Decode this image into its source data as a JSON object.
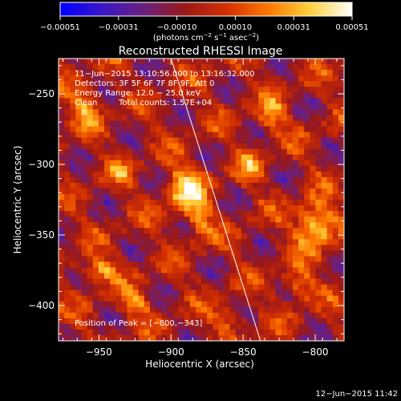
{
  "chart_data": {
    "type": "heatmap",
    "title": "Reconstructed RHESSI Image",
    "xlabel": "Heliocentric X (arcsec)",
    "ylabel": "Heliocentric Y (arcsec)",
    "xlim": [
      -978,
      -780
    ],
    "ylim": [
      -425,
      -225
    ],
    "x_ticks": [
      -950,
      -900,
      -850,
      -800
    ],
    "x_tick_labels": [
      "−950",
      "−900",
      "−850",
      "−800"
    ],
    "y_ticks": [
      -250,
      -300,
      -350,
      -400
    ],
    "y_tick_labels": [
      "−250",
      "−300",
      "−350",
      "−400"
    ],
    "colorbar": {
      "vmin": -0.00051,
      "vmax": 0.00051,
      "ticks": [
        "−0.00051",
        "−0.00031",
        "−0.00010",
        "0.00010",
        "0.00031",
        "0.00051"
      ],
      "unit_base": "(photons cm",
      "unit_sup1": "−2",
      "unit_s": " s",
      "unit_sup2": "−1",
      "unit_asec": " asec",
      "unit_sup3": "−2",
      "unit_close": ")",
      "colors": [
        "#0000ff",
        "#3a16c8",
        "#6a2080",
        "#9a1818",
        "#d43000",
        "#ff7800",
        "#ffd23c",
        "#ffffff"
      ]
    },
    "annotations": {
      "time_range": "11−Jun−2015 13:10:56.000 to 13:16:32.000",
      "detectors": "Detectors: 3F 5F 6F 7F 8F 9F, Att 0",
      "energy": "Energy Range: 12.0 − 25.0 keV",
      "algorithm": "Clean",
      "total_counts": "Total counts: 1.57E+04",
      "peak": "Position of Peak = [−800,−343]"
    },
    "limb_line": {
      "x": [
        -900,
        -838
      ],
      "y": [
        -225,
        -425
      ]
    },
    "sources": [
      {
        "x": -890,
        "y": -318,
        "peak": 0.00043,
        "sx": 9,
        "sy": 12
      },
      {
        "x": -880,
        "y": -340,
        "peak": 0.0003,
        "sx": 6,
        "sy": 10
      },
      {
        "x": -800,
        "y": -343,
        "peak": 0.00051,
        "sx": 9,
        "sy": 11
      },
      {
        "x": -950,
        "y": -375,
        "peak": 0.00034,
        "sx": 9,
        "sy": 6
      },
      {
        "x": -960,
        "y": -260,
        "peak": 0.0003,
        "sx": 8,
        "sy": 10
      },
      {
        "x": -925,
        "y": -398,
        "peak": 0.00028,
        "sx": 7,
        "sy": 7
      },
      {
        "x": -830,
        "y": -265,
        "peak": 0.00028,
        "sx": 7,
        "sy": 9
      },
      {
        "x": -812,
        "y": -385,
        "peak": 0.0003,
        "sx": 7,
        "sy": 8
      },
      {
        "x": -860,
        "y": -410,
        "peak": 0.00024,
        "sx": 7,
        "sy": 6
      },
      {
        "x": -935,
        "y": -305,
        "peak": 0.00022,
        "sx": 6,
        "sy": 6
      },
      {
        "x": -845,
        "y": -300,
        "peak": 0.00024,
        "sx": 6,
        "sy": 8
      }
    ]
  },
  "footer": {
    "timestamp": "12−Jun−2015 11:42"
  }
}
